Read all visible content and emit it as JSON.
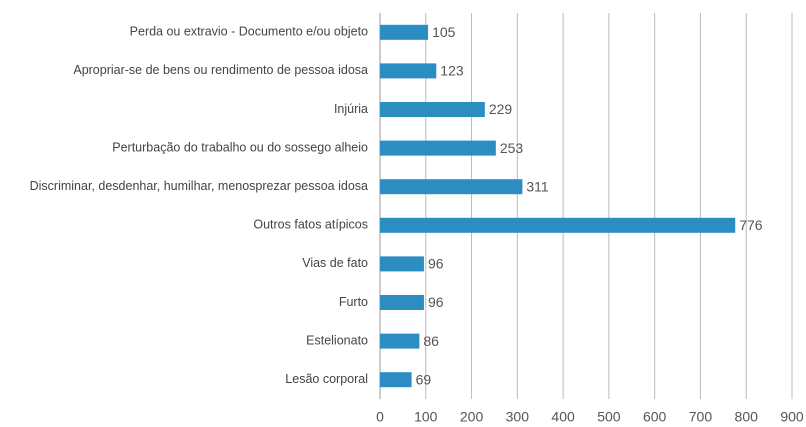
{
  "chart_data": {
    "type": "hbar",
    "categories": [
      "Perda ou extravio - Documento e/ou objeto",
      "Apropriar-se de bens ou rendimento de pessoa idosa",
      "Injúria",
      "Perturbação do trabalho ou do sossego alheio",
      "Discriminar, desdenhar, humilhar, menosprezar pessoa idosa",
      "Outros fatos atípicos",
      "Vias de fato",
      "Furto",
      "Estelionato",
      "Lesão corporal"
    ],
    "values": [
      105,
      123,
      229,
      253,
      311,
      776,
      96,
      96,
      86,
      69
    ],
    "color": "#2b8dc2",
    "xlim": [
      0,
      900
    ],
    "xticks": [
      0,
      100,
      200,
      300,
      400,
      500,
      600,
      700,
      800,
      900
    ],
    "grid": true
  }
}
